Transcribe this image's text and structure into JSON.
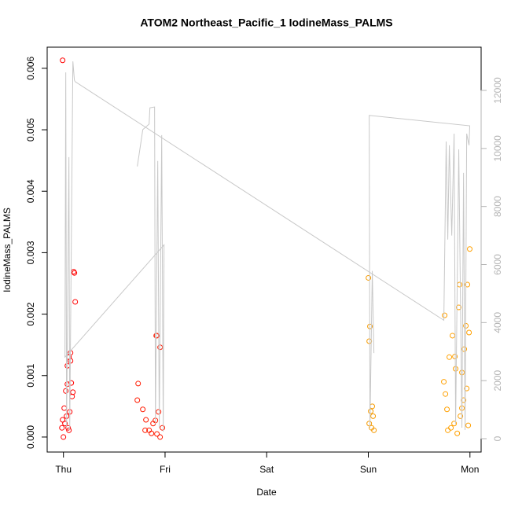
{
  "chart_data": {
    "type": "scatter",
    "title": "ATOM2 Northeast_Pacific_1 IodineMass_PALMS",
    "x_label": "Date",
    "y_label": "IodineMass_PALMS",
    "xlim": [
      -0.16,
      4.11
    ],
    "xticks": [
      {
        "value": 0,
        "label": "Thu"
      },
      {
        "value": 1,
        "label": "Fri"
      },
      {
        "value": 2,
        "label": "Sat"
      },
      {
        "value": 3,
        "label": "Sun"
      },
      {
        "value": 4,
        "label": "Mon"
      }
    ],
    "ylim": [
      -0.000244,
      0.006344
    ],
    "yticks": [
      {
        "value": 0,
        "label": "0.000"
      },
      {
        "value": 0.001,
        "label": "0.001"
      },
      {
        "value": 0.002,
        "label": "0.002"
      },
      {
        "value": 0.003,
        "label": "0.003"
      },
      {
        "value": 0.004,
        "label": "0.004"
      },
      {
        "value": 0.005,
        "label": "0.005"
      },
      {
        "value": 0.006,
        "label": "0.006"
      }
    ],
    "y2lim": [
      -460,
      13490
    ],
    "y2ticks": [
      0,
      2000,
      4000,
      6000,
      8000,
      10000,
      12000
    ],
    "y2_color": "#b4b4b4",
    "series": [
      {
        "x": [
          -0.008,
          0,
          -0.015,
          0.008,
          0.023,
          0.039,
          0.054,
          0.07,
          0.077,
          0.101,
          0.108,
          0.116,
          0.039,
          0.031,
          0.015,
          0.046,
          0.062,
          0.085,
          -0.008,
          0.054,
          0.093,
          0.07,
          0.735,
          0.727,
          0.781,
          0.812,
          0.843,
          0.882,
          0.913,
          0.92,
          0.951,
          0.92,
          0.951,
          0.974,
          0.936,
          0.866,
          0.804,
          0.905,
          3.001,
          3.016,
          3.009,
          3.024,
          3.039,
          3.047,
          3.032,
          3.055,
          3.009,
          3.751,
          3.743,
          3.759,
          3.774,
          3.797,
          3.828,
          3.852,
          3.859,
          3.898,
          3.89,
          3.921,
          3.944,
          3.96,
          3.975,
          3.991,
          3.998,
          3.937,
          3.906,
          3.813,
          3.875,
          3.968,
          3.844,
          3.782,
          3.921,
          3.983
        ],
        "values": [
          0.00613,
          0,
          0.00015,
          0.00047,
          0.00075,
          0.00116,
          0.0013,
          0.00137,
          0.00088,
          0.00269,
          0.00267,
          0.0022,
          0.00086,
          0.00034,
          0.00022,
          0.00015,
          0.00041,
          0.00066,
          0.00028,
          0.00011,
          0.00073,
          0.00124,
          0.00087,
          0.0006,
          0.00045,
          0.00028,
          0.00011,
          0.00022,
          0.00165,
          0.00165,
          0.00146,
          5e-05,
          0,
          0.00015,
          0.00041,
          6e-05,
          0.00011,
          0.00027,
          0.00259,
          0.0018,
          0.00156,
          0.00042,
          0.0005,
          0.00034,
          0.00015,
          0.00011,
          0.00022,
          0.00198,
          0.0009,
          0.0007,
          0.00045,
          0.0013,
          0.00165,
          0.00131,
          0.00111,
          0.00248,
          0.00211,
          0.00105,
          0.00143,
          0.00181,
          0.00248,
          0.0017,
          0.00306,
          0.0006,
          0.00034,
          0.00015,
          6e-05,
          0.00079,
          0.00022,
          0.00011,
          0.00047,
          0.00019
        ],
        "colors": [
          "#ff0000",
          "#ff0000",
          "#ff0000",
          "#ff0000",
          "#ff0000",
          "#ff0000",
          "#ff0000",
          "#ff0000",
          "#ff0000",
          "#ff0000",
          "#ff0000",
          "#ff0000",
          "#ff0000",
          "#ff0000",
          "#ff0000",
          "#ff0000",
          "#ff0000",
          "#ff0000",
          "#ff0000",
          "#ff0000",
          "#ff0000",
          "#ff0000",
          "#ff1a00",
          "#ff1a00",
          "#ff1a00",
          "#ff1a00",
          "#ff1a00",
          "#ff1a00",
          "#ff1a00",
          "#ff1a00",
          "#ff1a00",
          "#ff1a00",
          "#ff1a00",
          "#ff1a00",
          "#ff1a00",
          "#ff1a00",
          "#ff1a00",
          "#ff1a00",
          "#f59a00",
          "#f59a00",
          "#f59a00",
          "#f59a00",
          "#f59a00",
          "#f59a00",
          "#f59a00",
          "#f59a00",
          "#f59a00",
          "#ffa000",
          "#ffa000",
          "#ffa000",
          "#ffa000",
          "#ffa000",
          "#ffa000",
          "#ffa000",
          "#ffa000",
          "#ffa000",
          "#ffa000",
          "#ffa000",
          "#ffa000",
          "#ffa000",
          "#ffa000",
          "#ffa000",
          "#ffa000",
          "#ffa000",
          "#ffa000",
          "#ffa000",
          "#ffa000",
          "#ffa000",
          "#ffa000",
          "#ffa000",
          "#ffa000",
          "#ffa000"
        ]
      },
      {
        "type": "line",
        "axis": "y2",
        "color": "#c8c8c8",
        "x": [
          0.727,
          0.781,
          0.843,
          0.851,
          0.897,
          0.905,
          0.928,
          0.943,
          0.967,
          0.982,
          0.99,
          0.015,
          0.023,
          0.031,
          0.054,
          0.062,
          0.093,
          0.108,
          0.116,
          3.743,
          3.766,
          3.782,
          3.797,
          3.821,
          3.844,
          3.859,
          3.89,
          3.921,
          3.937,
          3.952,
          3.968,
          3.991,
          3.998,
          3.009,
          3.016,
          3.039,
          3.055
        ],
        "values": [
          9380,
          10650,
          10840,
          11400,
          11430,
          510,
          9570,
          380,
          10460,
          240,
          6680,
          2810,
          12620,
          380,
          9700,
          300,
          13000,
          12350,
          12300,
          4080,
          10240,
          6860,
          10110,
          7000,
          10510,
          510,
          9970,
          380,
          9160,
          300,
          10510,
          10110,
          10780,
          11140,
          380,
          5780,
          2950
        ]
      }
    ]
  }
}
